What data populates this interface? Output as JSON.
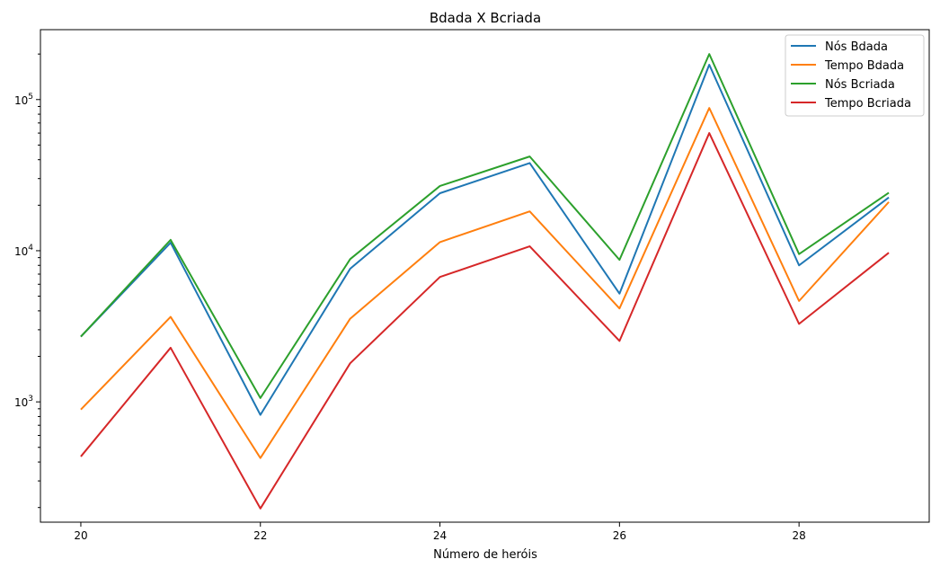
{
  "chart_data": {
    "type": "line",
    "title": "Bdada X Bcriada",
    "xlabel": "Número de heróis",
    "ylabel": "",
    "yscale": "log",
    "x": [
      20,
      21,
      22,
      23,
      24,
      25,
      26,
      27,
      28,
      29
    ],
    "xlim": [
      19.55,
      29.45
    ],
    "ylim": [
      160,
      290000
    ],
    "xticks": [
      20,
      22,
      24,
      26,
      28
    ],
    "yticks": [
      {
        "value": 1000,
        "base": "10",
        "exp": "3"
      },
      {
        "value": 10000,
        "base": "10",
        "exp": "4"
      },
      {
        "value": 100000,
        "base": "10",
        "exp": "5"
      }
    ],
    "grid": false,
    "legend_position": "top-right",
    "series": [
      {
        "name": "Nós Bdada",
        "color": "#1f77b4",
        "values": [
          2700,
          11300,
          820,
          7600,
          24000,
          38000,
          5200,
          170000,
          8000,
          22500
        ]
      },
      {
        "name": "Tempo Bdada",
        "color": "#ff7f0e",
        "values": [
          890,
          3650,
          425,
          3550,
          11400,
          18200,
          4150,
          88000,
          4650,
          21000
        ]
      },
      {
        "name": "Nós Bcriada",
        "color": "#2ca02c",
        "values": [
          2700,
          11800,
          1060,
          8800,
          26800,
          42000,
          8700,
          200000,
          9500,
          24200
        ]
      },
      {
        "name": "Tempo Bcriada",
        "color": "#d62728",
        "values": [
          435,
          2280,
          197,
          1800,
          6700,
          10700,
          2530,
          60000,
          3280,
          9700
        ]
      }
    ]
  }
}
